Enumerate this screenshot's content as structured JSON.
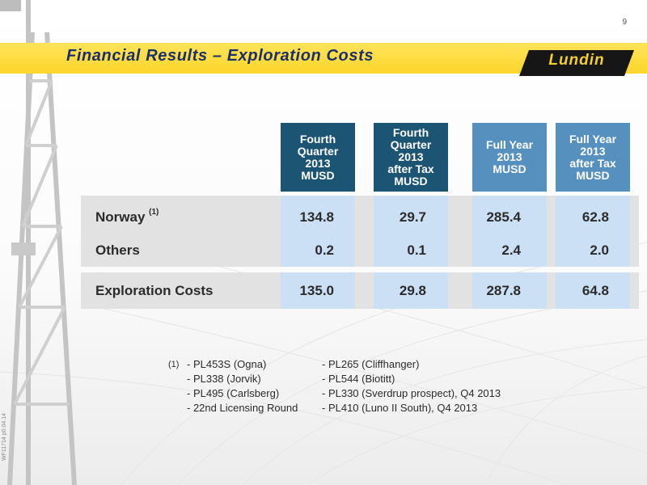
{
  "page_number": "9",
  "title": "Financial Results – Exploration Costs",
  "logo_text": "Lundin",
  "side_code": "WF11714 p0.04.14",
  "colors": {
    "title_bar": "#fcd52b",
    "title_text": "#1b2f6b",
    "header_dark": "#1c5574",
    "header_light": "#5690bf",
    "cell_bg": "#cbe0f4",
    "row_band": "#e2e2e2"
  },
  "columns": [
    {
      "lines": [
        "Fourth Quarter",
        "2013",
        "MUSD"
      ]
    },
    {
      "lines": [
        "Fourth Quarter",
        "2013",
        "after Tax",
        "MUSD"
      ]
    },
    {
      "lines": [
        "Full Year",
        "2013",
        "MUSD"
      ]
    },
    {
      "lines": [
        "Full Year",
        "2013",
        "after Tax",
        "MUSD"
      ]
    }
  ],
  "rows": [
    {
      "label": "Norway",
      "sup": "(1)",
      "values": [
        "134.8",
        "29.7",
        "285.4",
        "62.8"
      ]
    },
    {
      "label": "Others",
      "sup": "",
      "values": [
        "0.2",
        "0.1",
        "2.4",
        "2.0"
      ]
    },
    {
      "label": "Exploration Costs",
      "sup": "",
      "values": [
        "135.0",
        "29.8",
        "287.8",
        "64.8"
      ]
    }
  ],
  "footnote": {
    "marker": "(1)",
    "left": [
      "- PL453S (Ogna)",
      "- PL338 (Jorvik)",
      "- PL495 (Carlsberg)",
      "- 22nd Licensing Round"
    ],
    "right": [
      "- PL265 (Cliffhanger)",
      "- PL544 (Biotitt)",
      "- PL330 (Sverdrup prospect), Q4 2013",
      "- PL410 (Luno II South), Q4 2013"
    ]
  }
}
